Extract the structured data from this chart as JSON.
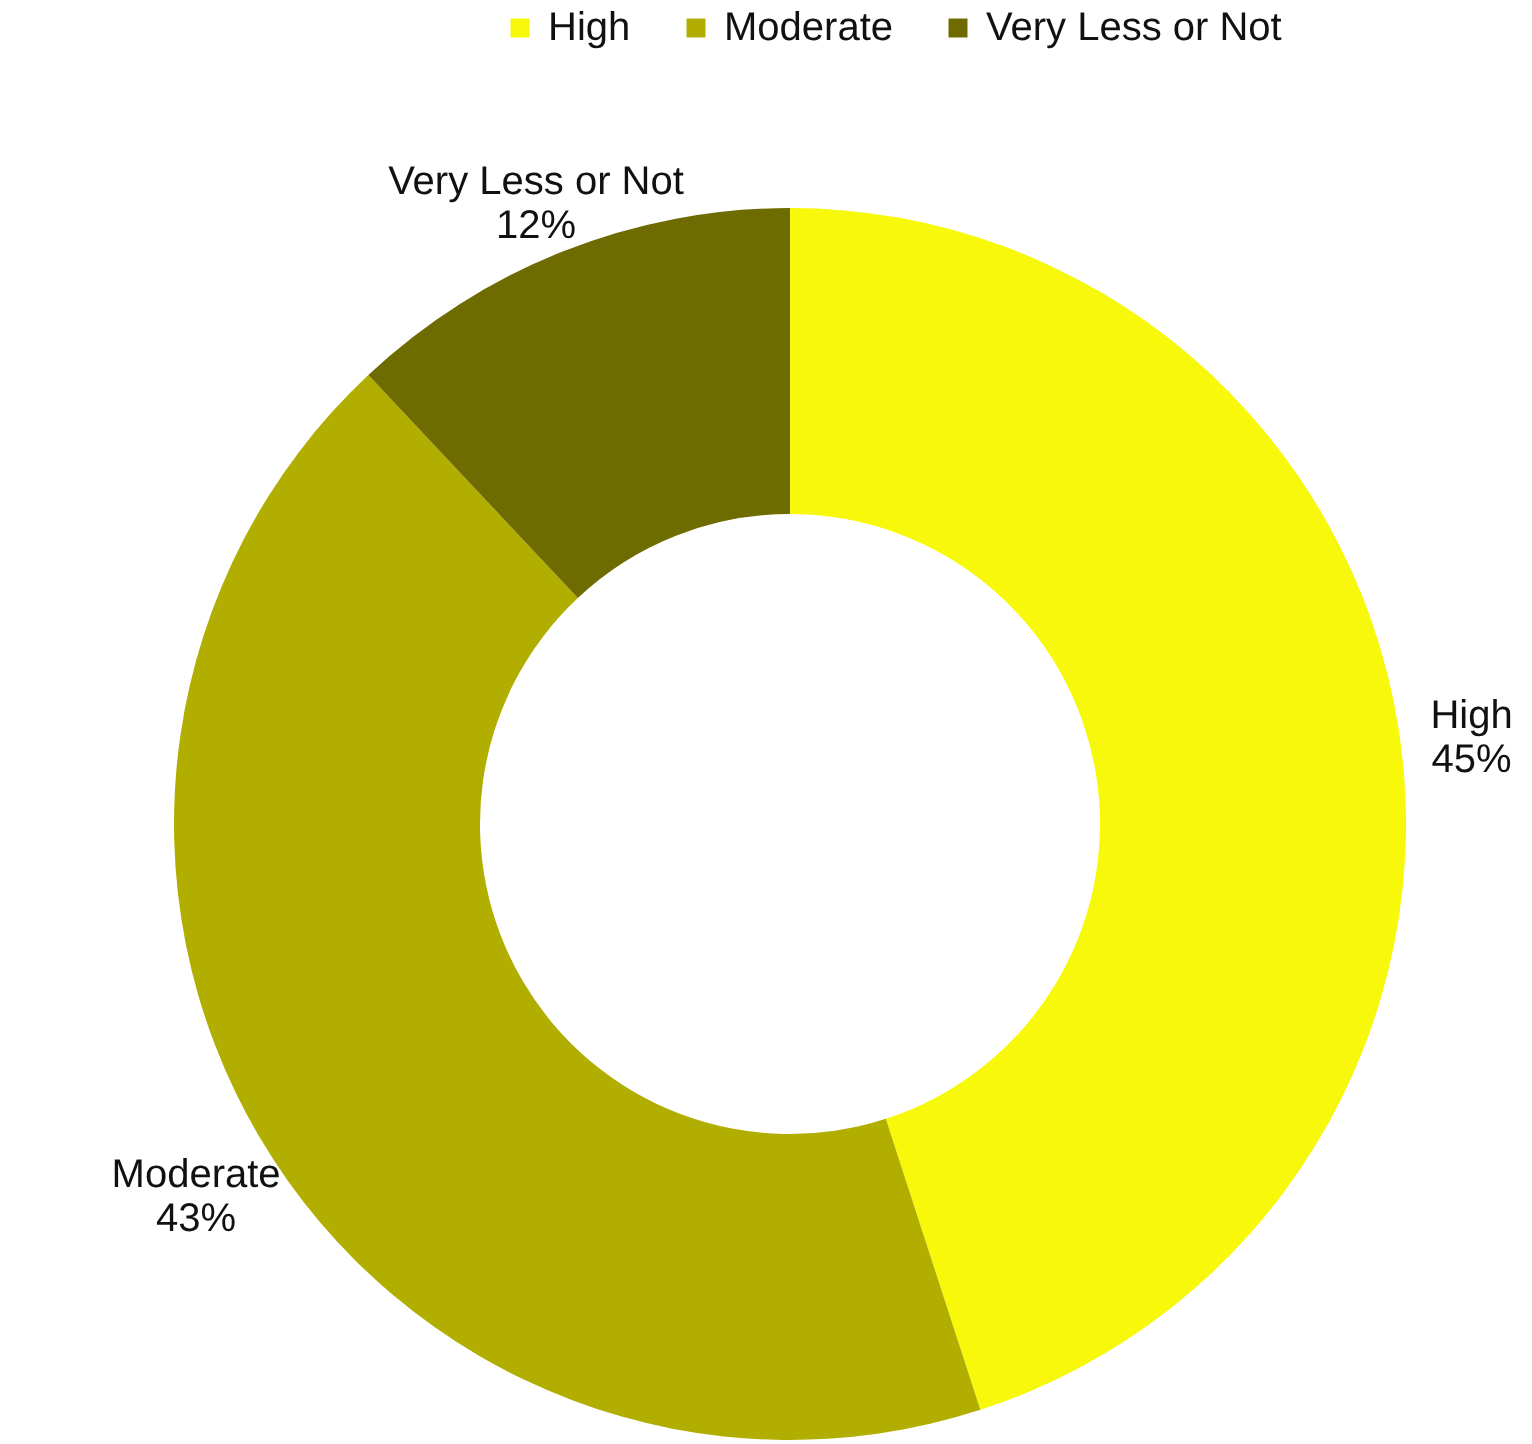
{
  "chart_data": {
    "type": "donut",
    "categories": [
      "High",
      "Moderate",
      "Very Less or Not"
    ],
    "values": [
      45,
      43,
      12
    ],
    "colors": [
      "#f8f80a",
      "#b1ae00",
      "#6e6b00"
    ],
    "value_labels": [
      "45%",
      "43%",
      "12%"
    ],
    "legend": "top"
  }
}
